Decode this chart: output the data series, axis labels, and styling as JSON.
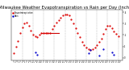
{
  "title": "Milwaukee Weather Evapotranspiration vs Rain per Day (Inches)",
  "title_fontsize": 3.8,
  "background_color": "#ffffff",
  "grid_color": "#999999",
  "ylim": [
    -0.02,
    0.42
  ],
  "xlim": [
    0,
    52
  ],
  "et_color": "#dd0000",
  "rain_color": "#0000cc",
  "line_color": "#cc0000",
  "et_x": [
    1,
    2,
    3,
    4,
    5,
    6,
    7,
    8,
    9,
    10,
    11,
    12,
    13,
    14,
    15,
    16,
    17,
    18,
    19,
    20,
    21,
    22,
    23,
    24,
    25,
    26,
    27,
    28,
    29,
    30,
    31,
    32,
    33,
    34,
    35,
    36,
    37,
    38,
    39,
    40,
    41,
    42,
    43,
    44,
    45,
    46,
    47,
    48,
    49,
    50
  ],
  "et_y": [
    0.04,
    0.1,
    0.15,
    0.22,
    0.27,
    0.3,
    0.31,
    0.28,
    0.24,
    0.2,
    0.19,
    0.18,
    0.2,
    0.22,
    0.22,
    0.22,
    0.22,
    0.22,
    0.25,
    0.28,
    0.31,
    0.33,
    0.35,
    0.37,
    0.38,
    0.38,
    0.37,
    0.34,
    0.3,
    0.26,
    0.22,
    0.18,
    0.14,
    0.11,
    0.09,
    0.08,
    0.07,
    0.08,
    0.09,
    0.11,
    0.14,
    0.17,
    0.21,
    0.25,
    0.28,
    0.28,
    0.26,
    0.23,
    0.21,
    0.19
  ],
  "rain_x": [
    11,
    12,
    36,
    37,
    41,
    43,
    47,
    48
  ],
  "rain_y": [
    0.05,
    0.03,
    0.04,
    0.07,
    0.02,
    0.08,
    0.05,
    0.03
  ],
  "hline_x": [
    14,
    22
  ],
  "hline_y": [
    0.22,
    0.22
  ],
  "vgrid_x": [
    5,
    10,
    15,
    20,
    25,
    30,
    35,
    40,
    45,
    50
  ],
  "yticks": [
    0.0,
    0.1,
    0.2,
    0.3,
    0.4
  ],
  "ytick_labels": [
    "0",
    ".1",
    ".2",
    ".3",
    ".4"
  ],
  "legend_et": "Evapotranspiration",
  "legend_rain": "Rain"
}
